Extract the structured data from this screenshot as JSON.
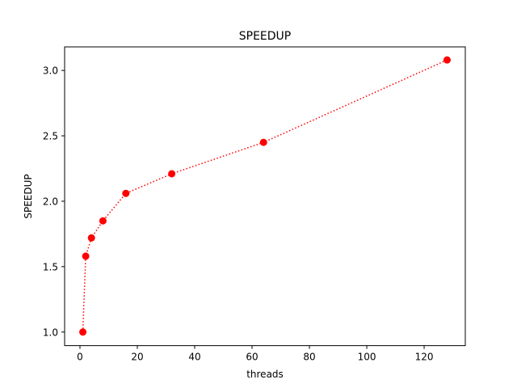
{
  "chart_data": {
    "type": "line",
    "title": "SPEEDUP",
    "xlabel": "threads",
    "ylabel": "SPEEDUP",
    "xlim": [
      -5.35,
      134.35
    ],
    "ylim": [
      0.896,
      3.18
    ],
    "xticks": [
      0,
      20,
      40,
      60,
      80,
      100,
      120
    ],
    "yticks": [
      1.0,
      1.5,
      2.0,
      2.5,
      3.0
    ],
    "xtick_labels": [
      "0",
      "20",
      "40",
      "60",
      "80",
      "100",
      "120"
    ],
    "ytick_labels": [
      "1.0",
      "1.5",
      "2.0",
      "2.5",
      "3.0"
    ],
    "grid": false,
    "series": [
      {
        "x": [
          1,
          2,
          4,
          8,
          16,
          32,
          64,
          128
        ],
        "y": [
          1.0,
          1.58,
          1.72,
          1.85,
          2.06,
          2.21,
          2.45,
          3.08
        ],
        "color": "#ff0000",
        "line_style": "dotted",
        "marker": "circle"
      }
    ]
  }
}
